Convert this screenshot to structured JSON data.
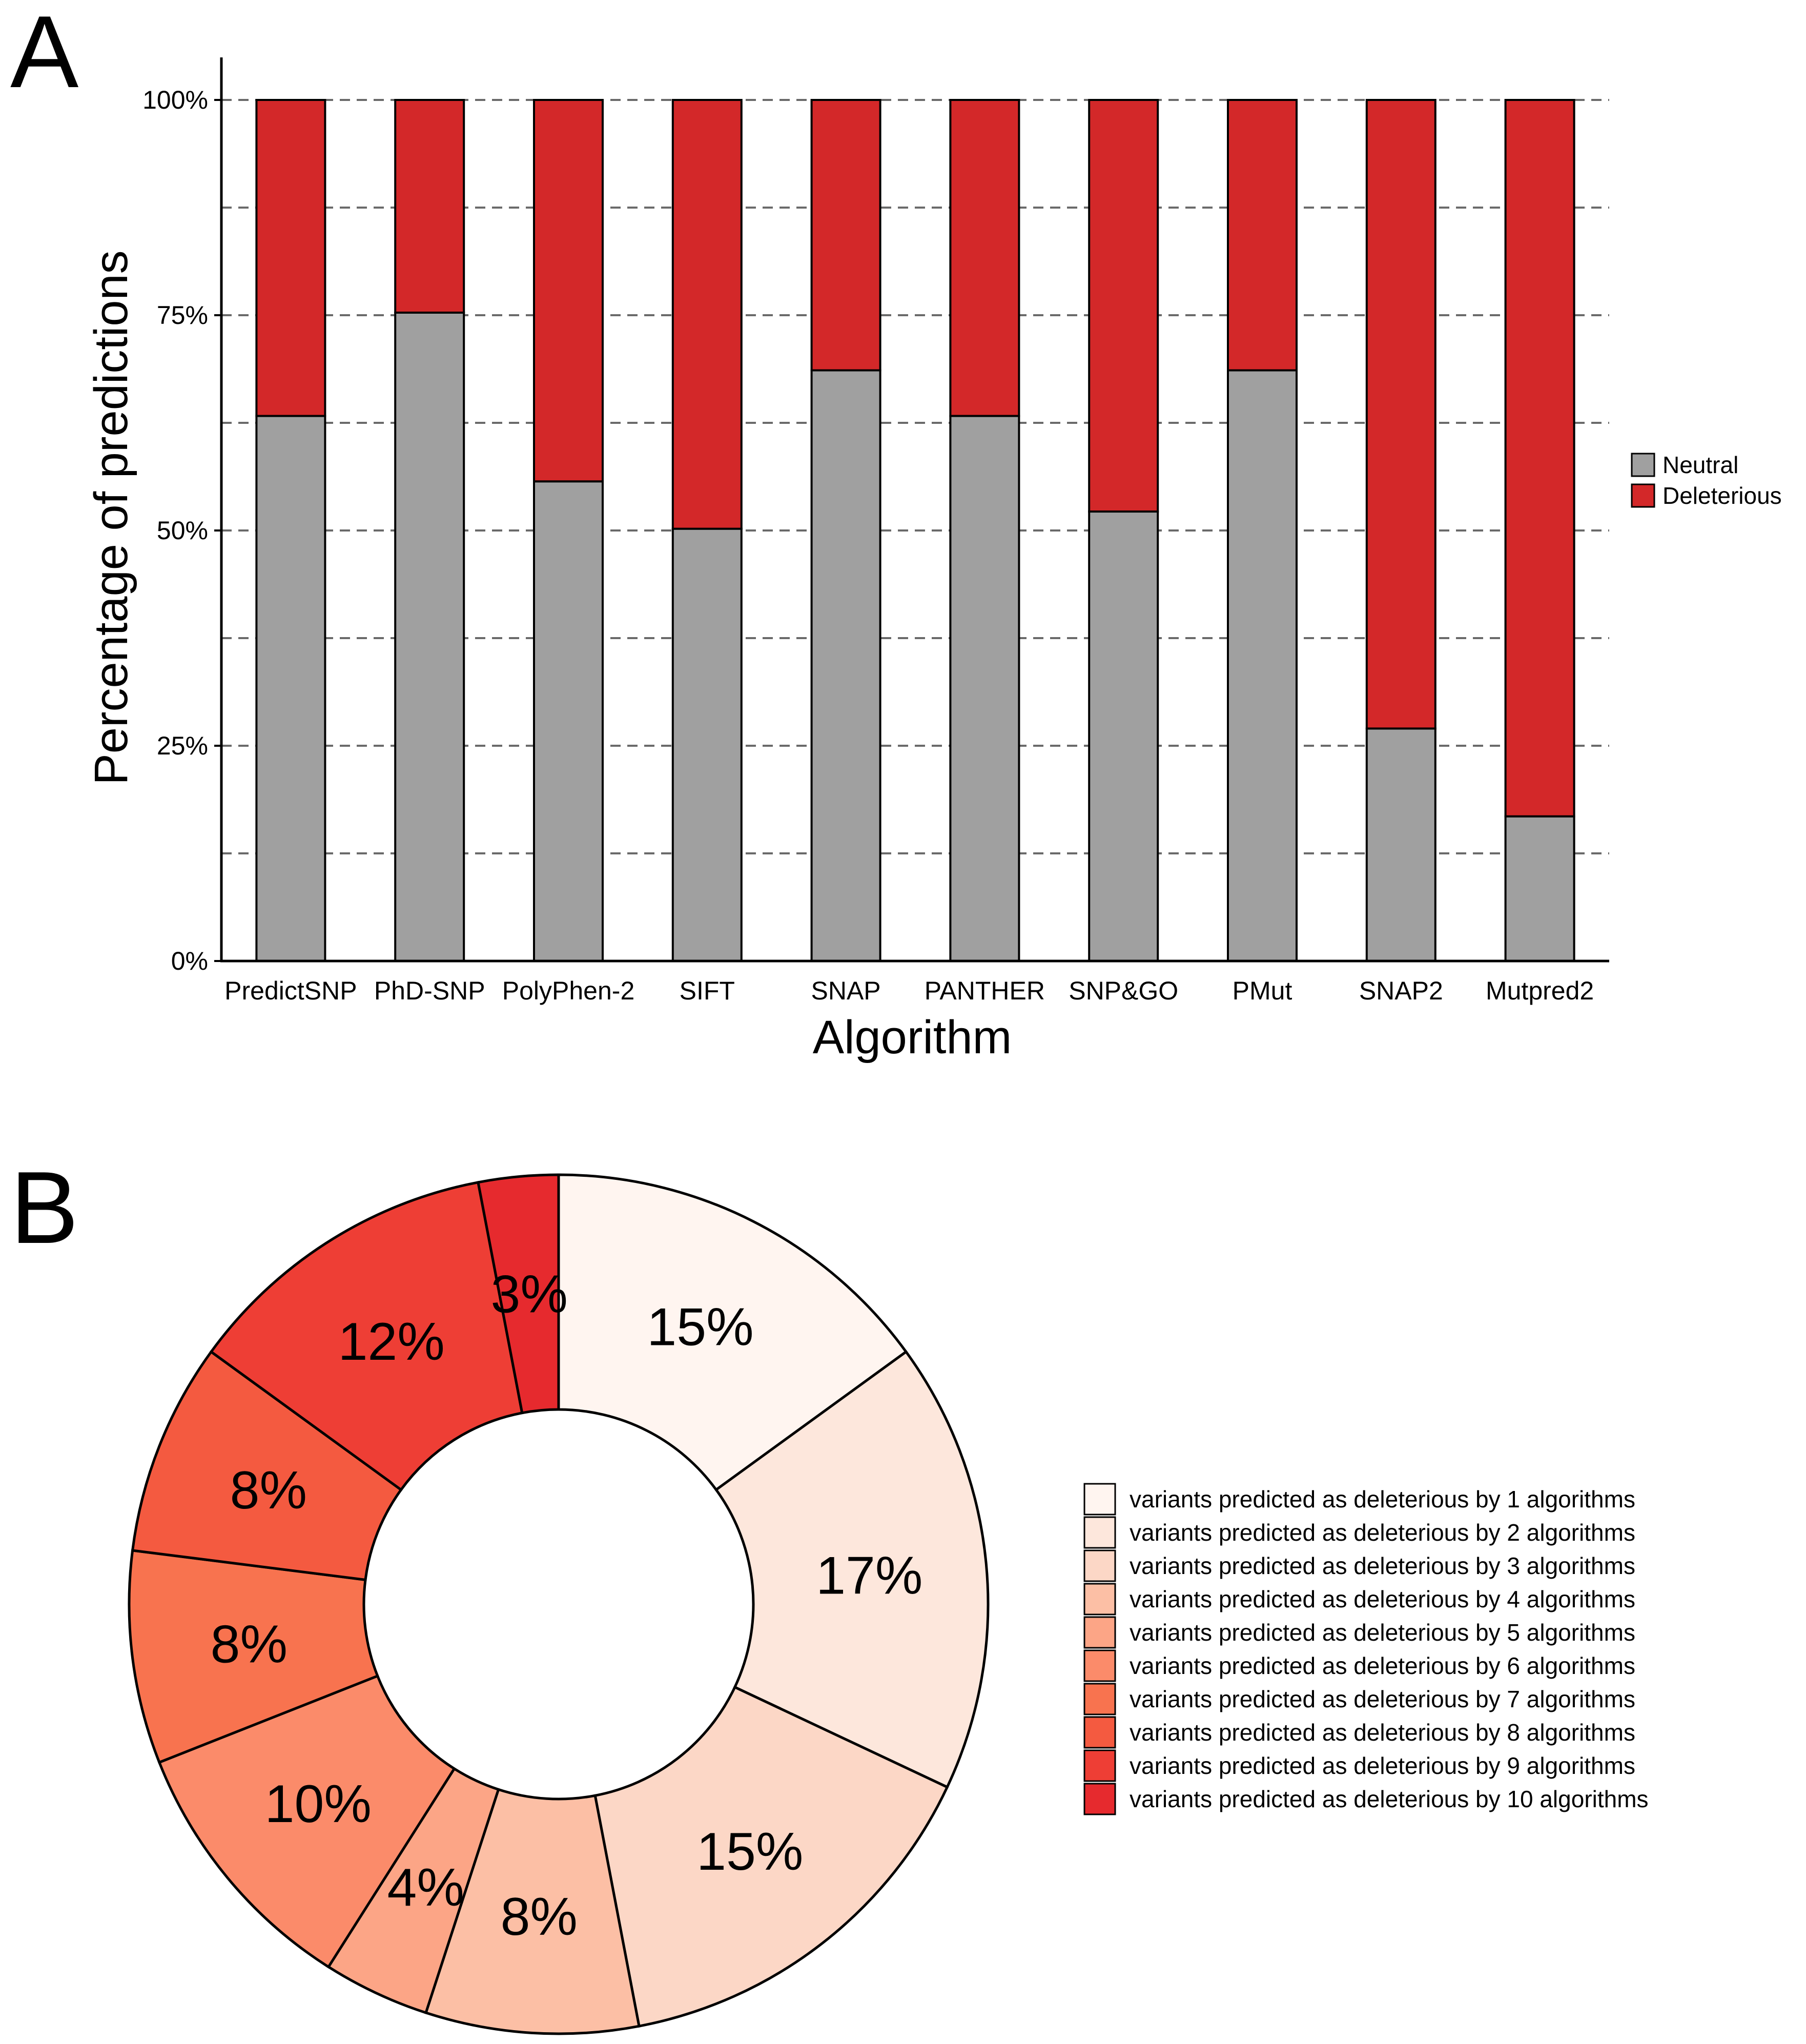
{
  "panels": {
    "a_label": "A",
    "b_label": "B"
  },
  "chart_data": [
    {
      "type": "bar",
      "stacked": true,
      "title": "",
      "xlabel": "Algorithm",
      "ylabel": "Percentage of predictions",
      "ylim": [
        0,
        100
      ],
      "yticks": [
        {
          "value": 0,
          "label": "0%"
        },
        {
          "value": 25,
          "label": "25%"
        },
        {
          "value": 50,
          "label": "50%"
        },
        {
          "value": 75,
          "label": "75%"
        },
        {
          "value": 100,
          "label": "100%"
        }
      ],
      "minor_gridlines": [
        12.5,
        37.5,
        62.5,
        87.5
      ],
      "grid": "dashed horizontal",
      "categories": [
        "PredictSNP",
        "PhD-SNP",
        "PolyPhen-2",
        "SIFT",
        "SNAP",
        "PANTHER",
        "SNP&GO",
        "PMut",
        "SNAP2",
        "Mutpred2"
      ],
      "series": [
        {
          "name": "Neutral",
          "color": "#a0a0a0",
          "values": [
            63.3,
            75.3,
            55.7,
            50.2,
            68.6,
            63.3,
            52.2,
            68.6,
            27.0,
            16.8
          ]
        },
        {
          "name": "Deleterious",
          "color": "#d32829",
          "values": [
            36.7,
            24.7,
            44.3,
            49.8,
            31.4,
            36.7,
            47.8,
            31.4,
            73.0,
            83.2
          ]
        }
      ],
      "legend": "right"
    },
    {
      "type": "pie",
      "donut": true,
      "title": "",
      "slices": [
        {
          "label": "variants predicted as deleterious by 1 algorithms",
          "value": 15,
          "text": "15%",
          "color": "#fff5f0"
        },
        {
          "label": "variants predicted as deleterious by 2 algorithms",
          "value": 17,
          "text": "17%",
          "color": "#fde7dc"
        },
        {
          "label": "variants predicted as deleterious by 3 algorithms",
          "value": 15,
          "text": "15%",
          "color": "#fcd7c6"
        },
        {
          "label": "variants predicted as deleterious by 4 algorithms",
          "value": 8,
          "text": "8%",
          "color": "#fcbfa5"
        },
        {
          "label": "variants predicted as deleterious by 5 algorithms",
          "value": 4,
          "text": "4%",
          "color": "#fca586"
        },
        {
          "label": "variants predicted as deleterious by 6 algorithms",
          "value": 10,
          "text": "10%",
          "color": "#fb8b6a"
        },
        {
          "label": "variants predicted as deleterious by 7 algorithms",
          "value": 8,
          "text": "8%",
          "color": "#f8734f"
        },
        {
          "label": "variants predicted as deleterious by 8 algorithms",
          "value": 8,
          "text": "8%",
          "color": "#f45a40"
        },
        {
          "label": "variants predicted as deleterious by 9 algorithms",
          "value": 12,
          "text": "12%",
          "color": "#ee3e35"
        },
        {
          "label": "variants predicted as deleterious by 10 algorithms",
          "value": 3,
          "text": "3%",
          "color": "#e62a2e"
        }
      ],
      "legend": "right"
    }
  ]
}
